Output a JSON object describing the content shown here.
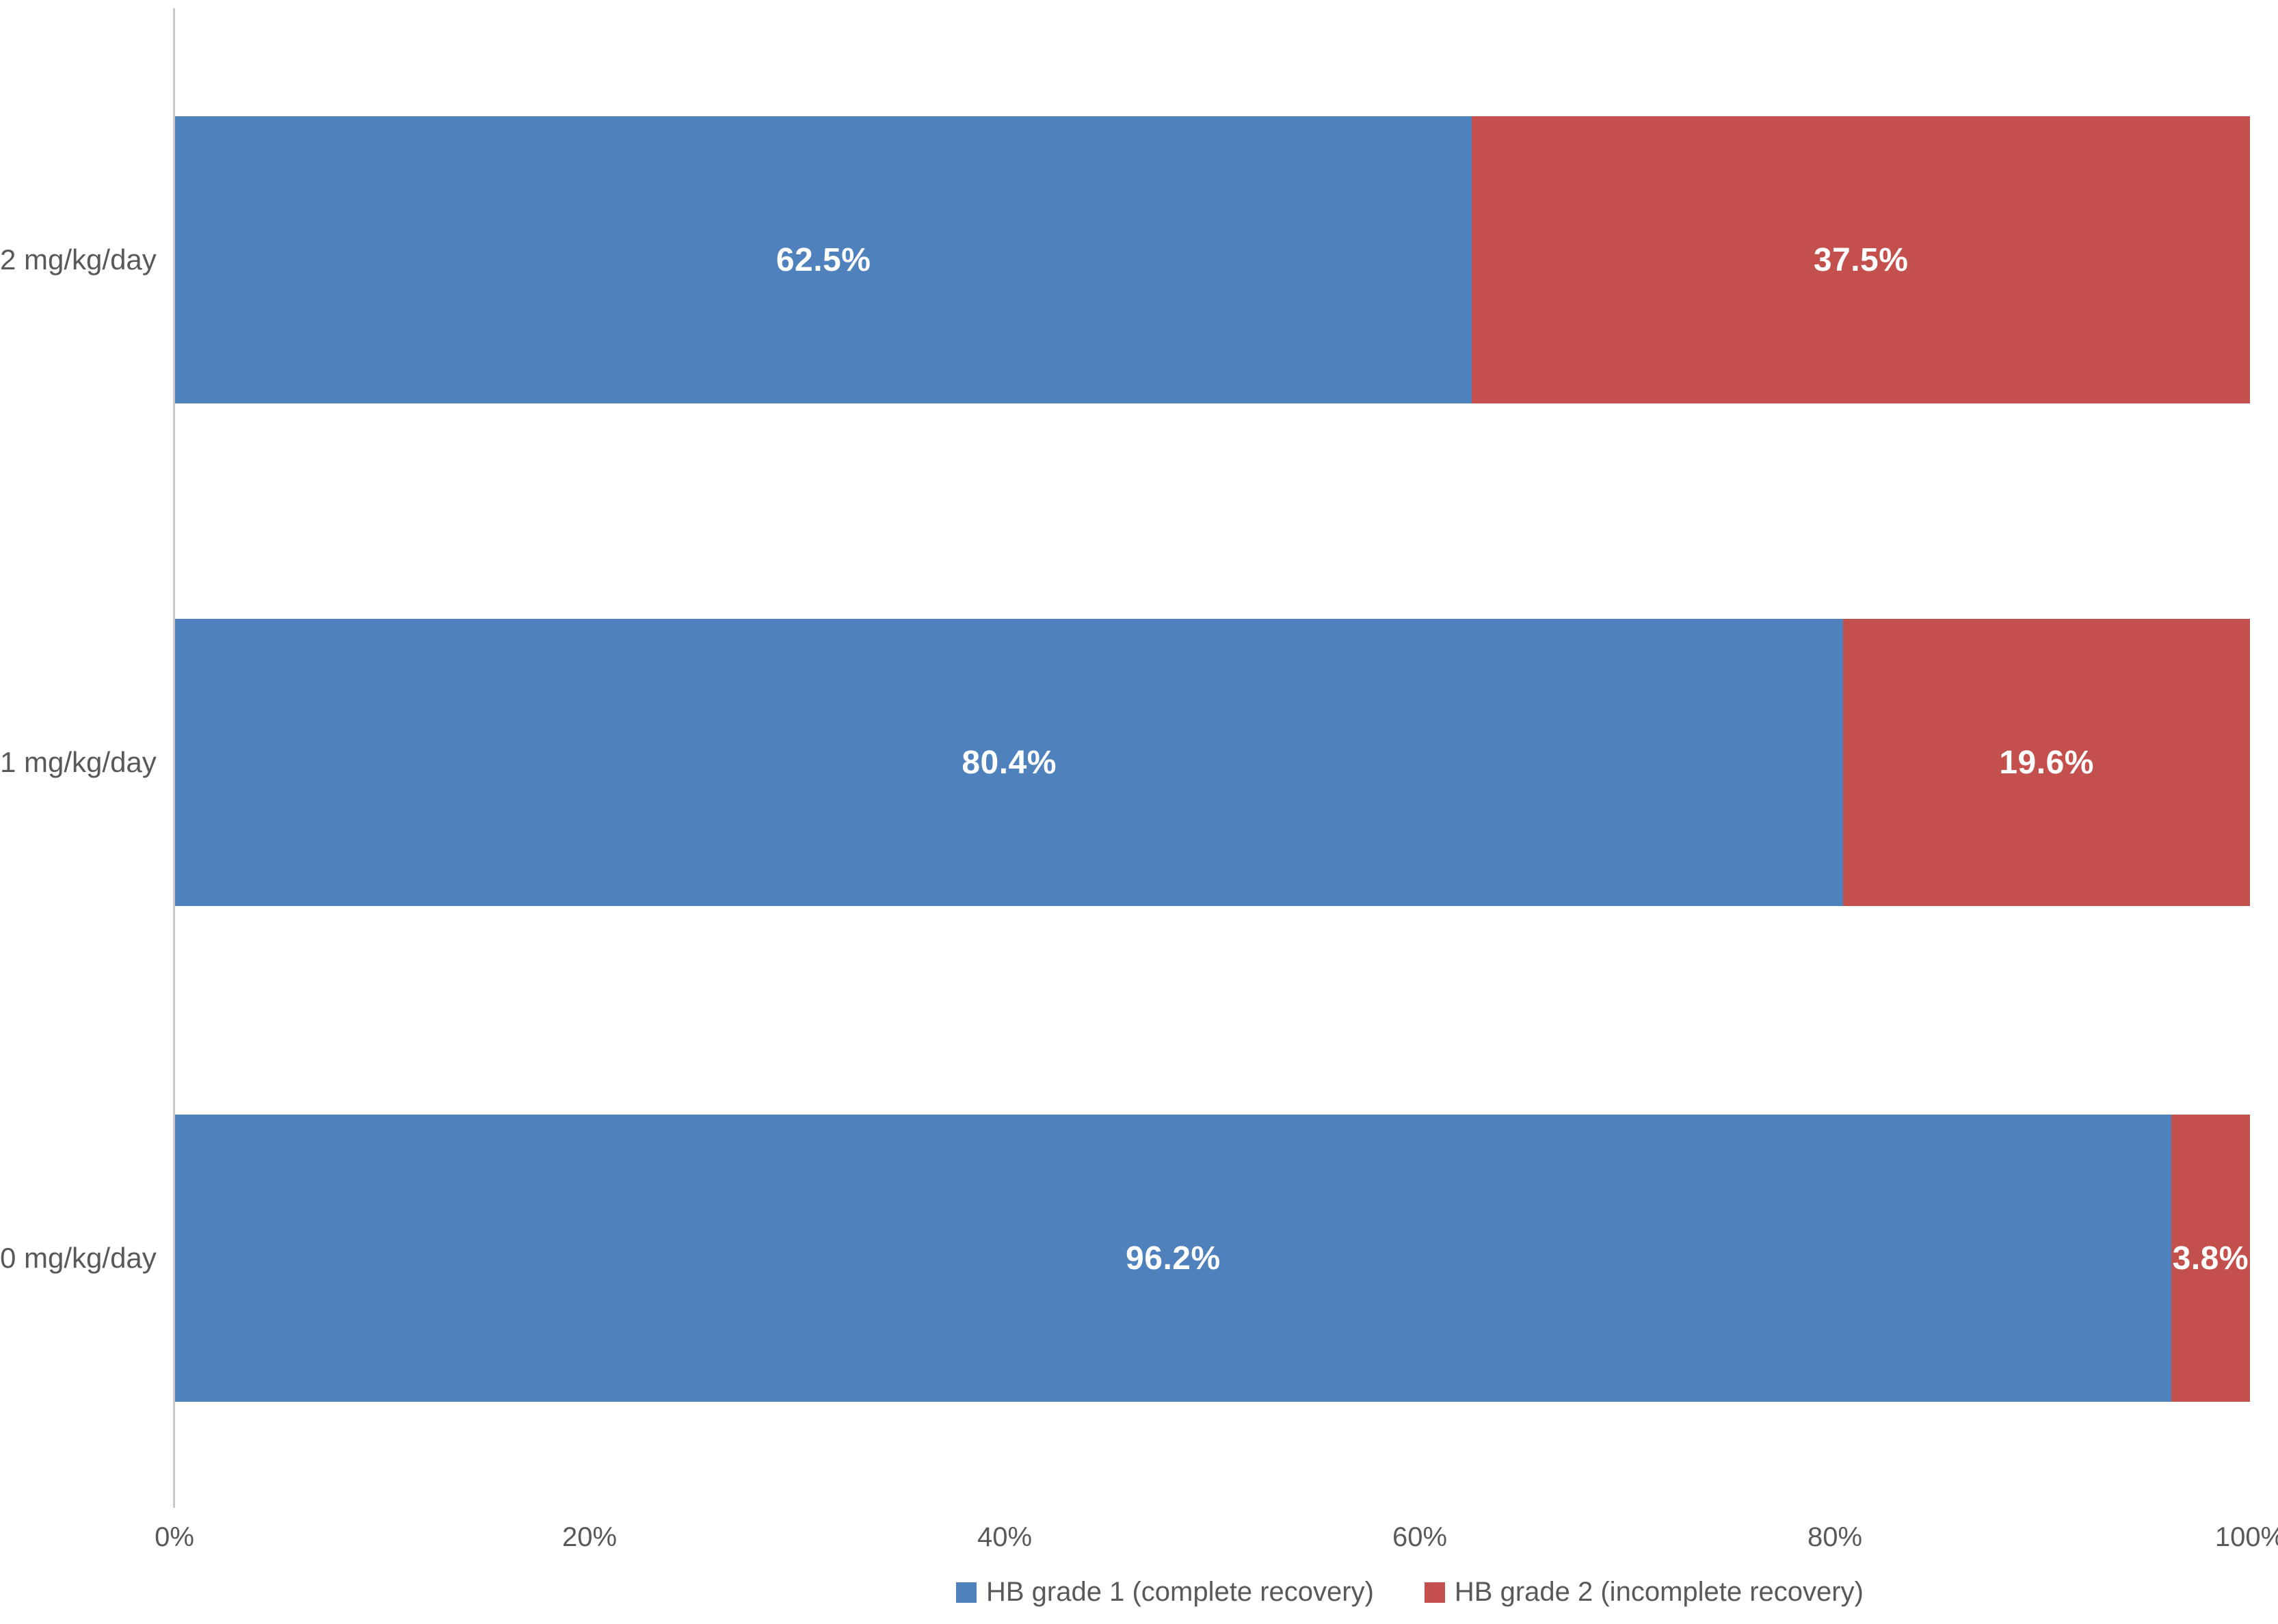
{
  "chart_data": {
    "type": "bar",
    "orientation": "horizontal",
    "stacked": true,
    "title": "",
    "xlabel": "",
    "ylabel": "",
    "categories": [
      "2 mg/kg/day",
      "1 mg/kg/day",
      "0 mg/kg/day"
    ],
    "series": [
      {
        "name": "HB grade 1 (complete recovery)",
        "color": "#4F81BD",
        "values": [
          62.5,
          80.4,
          96.2
        ],
        "labels": [
          "62.5%",
          "80.4%",
          "96.2%"
        ]
      },
      {
        "name": "HB grade 2 (incomplete recovery)",
        "color": "#C3504D",
        "values": [
          37.5,
          19.6,
          3.8
        ],
        "labels": [
          "37.5%",
          "19.6%",
          "3.8%"
        ]
      }
    ],
    "x_axis": {
      "range": [
        0,
        100
      ],
      "tick_labels": [
        "0%",
        "20%",
        "40%",
        "60%",
        "80%",
        "100%"
      ]
    },
    "legend": {
      "position": "bottom",
      "entries": [
        "HB grade 1 (complete recovery)",
        "HB grade 2 (incomplete recovery)"
      ]
    },
    "grid": false
  },
  "colors": {
    "axis_line": "#C9C9C9",
    "label_text": "#595959",
    "data_label_text": "#FFFFFF",
    "background": "#FFFFFF"
  }
}
